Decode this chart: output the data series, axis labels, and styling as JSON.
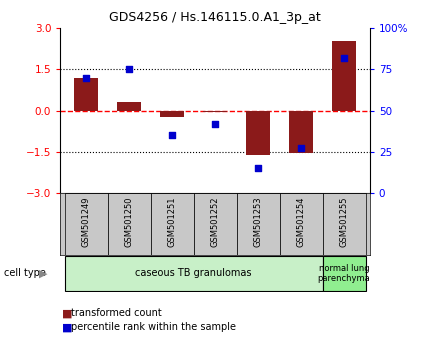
{
  "title": "GDS4256 / Hs.146115.0.A1_3p_at",
  "samples": [
    "GSM501249",
    "GSM501250",
    "GSM501251",
    "GSM501252",
    "GSM501253",
    "GSM501254",
    "GSM501255"
  ],
  "transformed_count": [
    1.2,
    0.3,
    -0.25,
    -0.05,
    -1.6,
    -1.55,
    2.55
  ],
  "percentile_rank": [
    70,
    75,
    35,
    42,
    15,
    27,
    82
  ],
  "bar_color": "#8B1A1A",
  "dot_color": "#0000CD",
  "ylim_left": [
    -3,
    3
  ],
  "ylim_right": [
    0,
    100
  ],
  "yticks_left": [
    -3,
    -1.5,
    0,
    1.5,
    3
  ],
  "yticks_right": [
    0,
    25,
    50,
    75,
    100
  ],
  "hlines": [
    1.5,
    0,
    -1.5
  ],
  "hline_styles": [
    "dotted",
    "dashed",
    "dotted"
  ],
  "hline_colors": [
    "black",
    "red",
    "black"
  ],
  "group1_indices": [
    0,
    1,
    2,
    3,
    4,
    5
  ],
  "group2_indices": [
    6
  ],
  "group1_label": "caseous TB granulomas",
  "group2_label": "normal lung\nparenchyma",
  "group1_color": "#c8f0c8",
  "group2_color": "#90ee90",
  "cell_type_label": "cell type",
  "legend_red_label": "transformed count",
  "legend_blue_label": "percentile rank within the sample",
  "bar_width": 0.55,
  "label_bg_color": "#c8c8c8",
  "label_border_color": "#000000"
}
